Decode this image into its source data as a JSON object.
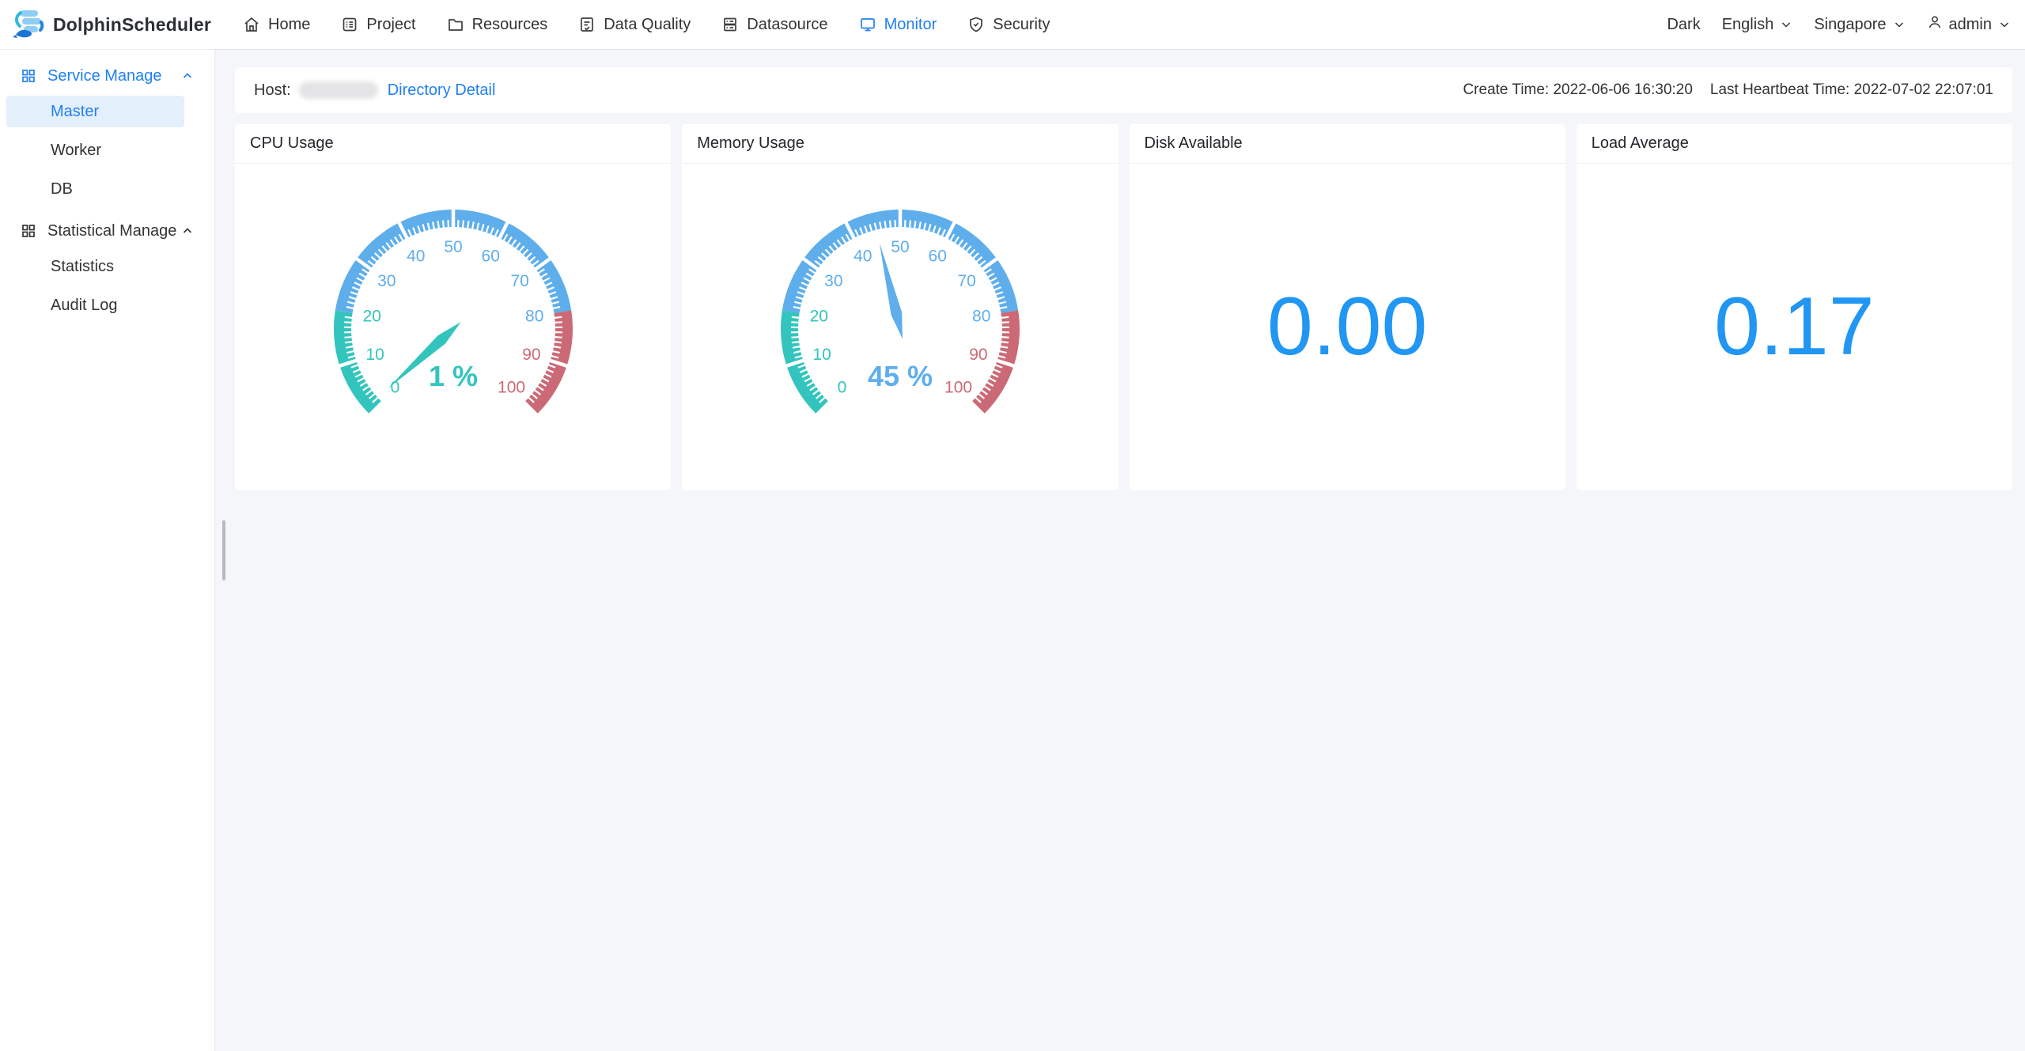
{
  "navbar": {
    "brand": "DolphinScheduler",
    "items": [
      {
        "label": "Home",
        "icon": "home-icon",
        "active": false
      },
      {
        "label": "Project",
        "icon": "project-icon",
        "active": false
      },
      {
        "label": "Resources",
        "icon": "resources-icon",
        "active": false
      },
      {
        "label": "Data Quality",
        "icon": "data-quality-icon",
        "active": false
      },
      {
        "label": "Datasource",
        "icon": "datasource-icon",
        "active": false
      },
      {
        "label": "Monitor",
        "icon": "monitor-icon",
        "active": true
      },
      {
        "label": "Security",
        "icon": "security-icon",
        "active": false
      }
    ],
    "right": {
      "theme_label": "Dark",
      "language": "English",
      "timezone": "Singapore",
      "user": "admin"
    }
  },
  "sidebar": {
    "sections": [
      {
        "label": "Service Manage",
        "icon": "grid-icon",
        "active": true,
        "expanded": true,
        "items": [
          {
            "label": "Master",
            "selected": true
          },
          {
            "label": "Worker",
            "selected": false
          },
          {
            "label": "DB",
            "selected": false
          }
        ]
      },
      {
        "label": "Statistical Manage",
        "icon": "grid-icon",
        "active": false,
        "expanded": true,
        "items": [
          {
            "label": "Statistics",
            "selected": false
          },
          {
            "label": "Audit Log",
            "selected": false
          }
        ]
      }
    ]
  },
  "host_bar": {
    "host_label": "Host:",
    "host_value_redacted": true,
    "link_label": "Directory Detail",
    "create_time": "Create Time: 2022-06-06 16:30:20",
    "heartbeat_time": "Last Heartbeat Time: 2022-07-02 22:07:01"
  },
  "cards": [
    {
      "title": "CPU Usage",
      "type": "gauge",
      "value": 1,
      "detail": "1 %"
    },
    {
      "title": "Memory Usage",
      "type": "gauge",
      "value": 45,
      "detail": "45 %"
    },
    {
      "title": "Disk Available",
      "type": "number",
      "display": "0.00"
    },
    {
      "title": "Load Average",
      "type": "number",
      "display": "0.17"
    }
  ],
  "chart_data": [
    {
      "type": "gauge",
      "title": "CPU Usage",
      "value": 1,
      "unit": "%",
      "min": 0,
      "max": 100,
      "tick_labels": [
        0,
        10,
        20,
        30,
        40,
        50,
        60,
        70,
        80,
        90,
        100
      ],
      "segments": [
        {
          "from": 0,
          "to": 20,
          "color": "#33c5bd"
        },
        {
          "from": 20,
          "to": 80,
          "color": "#5faeec"
        },
        {
          "from": 80,
          "to": 100,
          "color": "#cb6a76"
        }
      ]
    },
    {
      "type": "gauge",
      "title": "Memory Usage",
      "value": 45,
      "unit": "%",
      "min": 0,
      "max": 100,
      "tick_labels": [
        0,
        10,
        20,
        30,
        40,
        50,
        60,
        70,
        80,
        90,
        100
      ],
      "segments": [
        {
          "from": 0,
          "to": 20,
          "color": "#33c5bd"
        },
        {
          "from": 20,
          "to": 80,
          "color": "#5faeec"
        },
        {
          "from": 80,
          "to": 100,
          "color": "#cb6a76"
        }
      ]
    },
    {
      "type": "number",
      "title": "Disk Available",
      "value": 0.0,
      "display": "0.00"
    },
    {
      "type": "number",
      "title": "Load Average",
      "value": 0.17,
      "display": "0.17"
    }
  ],
  "gauge_style": {
    "start_angle": 225,
    "total_angle": 270,
    "outer_r": 151,
    "thickness": 22,
    "label_r": 104,
    "needle_len": 112,
    "split_values": [
      10,
      30,
      40,
      50,
      60,
      70,
      90
    ],
    "teal": "#33c5bd",
    "blue": "#5faeec",
    "red": "#cb6a76"
  },
  "colors": {
    "primary": "#2080f0",
    "big_number": "#2196f3",
    "background": "#f5f6f9"
  }
}
